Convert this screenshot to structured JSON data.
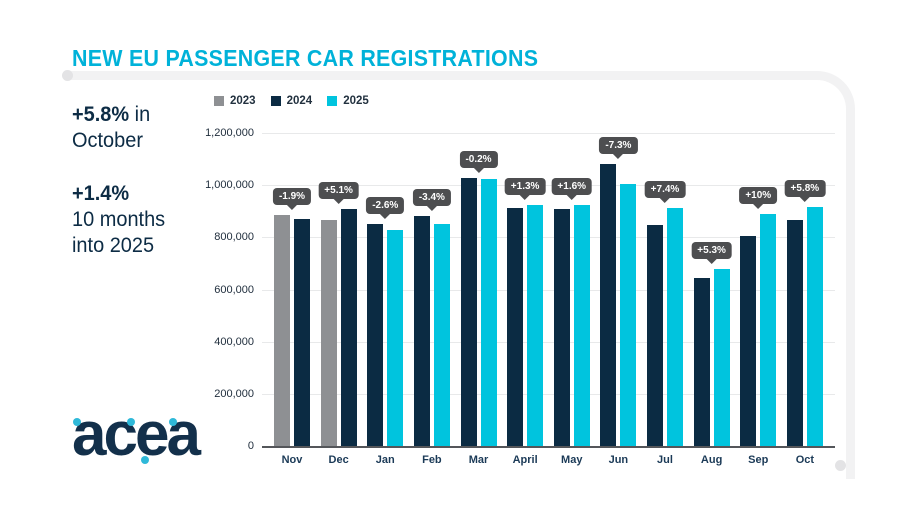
{
  "header": {
    "title": "NEW EU PASSENGER CAR REGISTRATIONS"
  },
  "stats": [
    {
      "bold": "+5.8%",
      "after": " in",
      "line2": "October"
    },
    {
      "bold": "+1.4%",
      "line2": "10 months",
      "line3": "into 2025"
    }
  ],
  "logo": {
    "text": "acea"
  },
  "colors": {
    "title_cyan": "#00b2d9",
    "navy": "#0b2b43",
    "gray": "#8e9093",
    "cyan": "#00c4de",
    "tooltip_bg": "#4d4e50",
    "frame_gray": "#f2f2f3"
  },
  "chart_data": {
    "type": "bar",
    "title": "NEW EU PASSENGER CAR REGISTRATIONS",
    "categories": [
      "Nov",
      "Dec",
      "Jan",
      "Feb",
      "Mar",
      "April",
      "May",
      "Jun",
      "Jul",
      "Aug",
      "Sep",
      "Oct"
    ],
    "series": [
      {
        "name": "2023",
        "color": "#8e9093",
        "values": [
          887000,
          865000,
          null,
          null,
          null,
          null,
          null,
          null,
          null,
          null,
          null,
          null
        ]
      },
      {
        "name": "2024",
        "color": "#0b2b43",
        "values": [
          869000,
          909000,
          851000,
          881000,
          1026000,
          912000,
          910000,
          1083000,
          849000,
          646000,
          807000,
          868000
        ]
      },
      {
        "name": "2025",
        "color": "#00c4de",
        "values": [
          null,
          null,
          829000,
          851000,
          1024000,
          924000,
          925000,
          1005000,
          912000,
          680000,
          888000,
          918000
        ]
      }
    ],
    "labels": [
      "-1.9%",
      "+5.1%",
      "-2.6%",
      "-3.4%",
      "-0.2%",
      "+1.3%",
      "+1.6%",
      "-7.3%",
      "+7.4%",
      "+5.3%",
      "+10%",
      "+5.8%"
    ],
    "ylim": [
      0,
      1200000
    ],
    "yticks": [
      1200000,
      1000000,
      800000,
      600000,
      400000,
      200000,
      0
    ],
    "ytick_labels": [
      "1,200,000",
      "1,000,000",
      "800,000",
      "600,000",
      "400,000",
      "200,000",
      "0"
    ],
    "legend": [
      "2023",
      "2024",
      "2025"
    ],
    "legend_position": "top-left",
    "grid": true,
    "xlabel": "",
    "ylabel": ""
  }
}
